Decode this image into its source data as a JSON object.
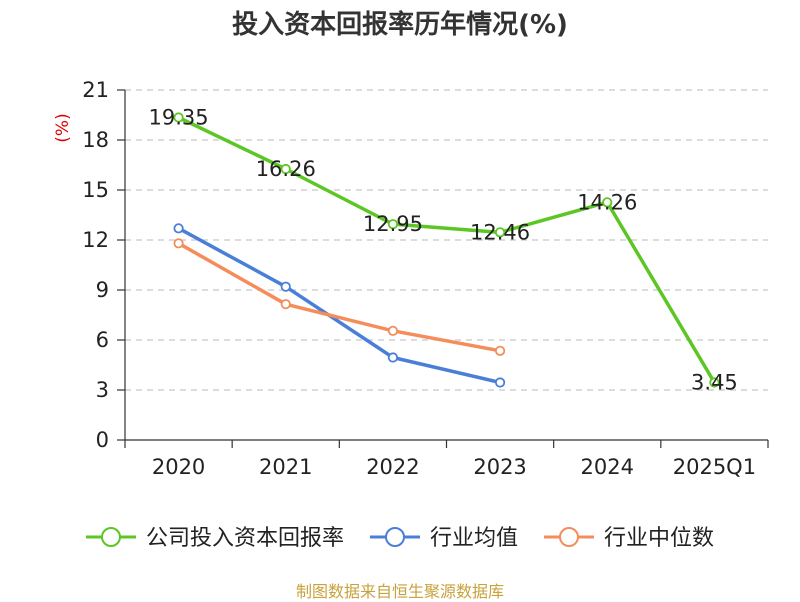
{
  "title": "投入资本回报率历年情况(%)",
  "source": "制图数据来自恒生聚源数据库",
  "colors": {
    "source_text": "#c8a23c",
    "unit_text": "#e00000",
    "grid": "#c8c8c8",
    "axis": "#333333"
  },
  "chart_data": {
    "type": "line",
    "title": "投入资本回报率历年情况(%)",
    "ylabel": "(%)",
    "xlabel": "",
    "categories": [
      "2020",
      "2021",
      "2022",
      "2023",
      "2024",
      "2025Q1"
    ],
    "ylim": [
      0,
      21
    ],
    "yticks": [
      0,
      3,
      6,
      9,
      12,
      15,
      18,
      21
    ],
    "grid": true,
    "legend_position": "bottom",
    "series": [
      {
        "name": "公司投入资本回报率",
        "color": "#5cc625",
        "values": [
          19.35,
          16.26,
          12.95,
          12.46,
          14.26,
          3.45
        ],
        "labels": [
          "19.35",
          "16.26",
          "12.95",
          "12.46",
          "14.26",
          "3.45"
        ],
        "show_labels": true
      },
      {
        "name": "行业均值",
        "color": "#4a7fd8",
        "values": [
          12.7,
          9.2,
          4.95,
          3.45,
          null,
          null
        ],
        "show_labels": false
      },
      {
        "name": "行业中位数",
        "color": "#f58d5a",
        "values": [
          11.8,
          8.15,
          6.55,
          5.35,
          null,
          null
        ],
        "show_labels": false
      }
    ]
  }
}
